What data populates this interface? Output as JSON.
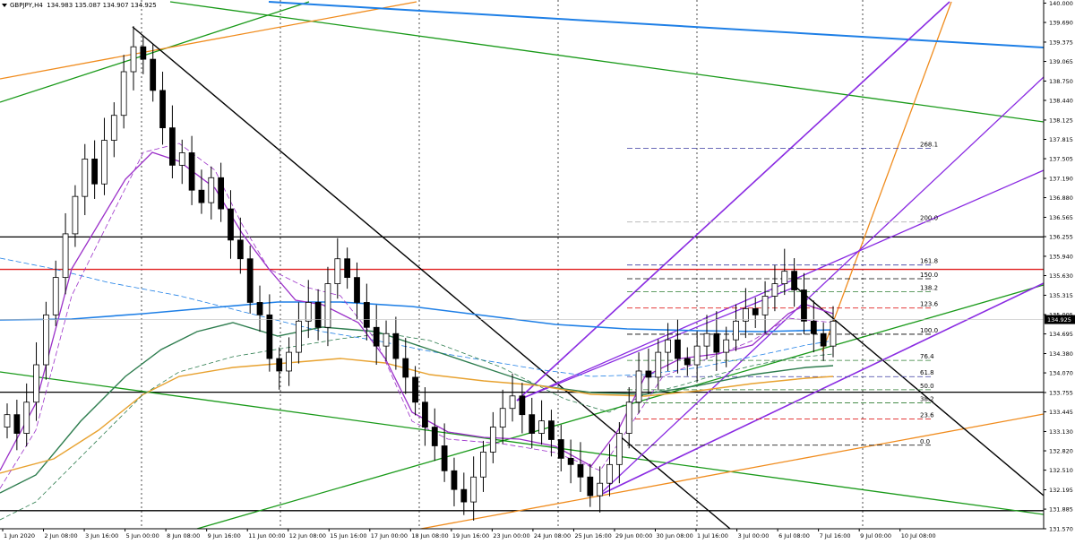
{
  "header": {
    "symbol": "GBPJPY,H4",
    "ohlc": "134.983 135.087 134.907 134.925"
  },
  "colors": {
    "background": "#ffffff",
    "candle": "#000000",
    "ma_blue": "#1e7fe6",
    "ma_green": "#2e7d4f",
    "ma_orange": "#e8a230",
    "ma_purple": "#9b30c9",
    "fib_level": "#000000",
    "support_red": "#e02020",
    "trend_green": "#1a9a1a",
    "trend_orange": "#f08c1e",
    "trend_purple": "#8a2be2",
    "trend_black": "#000000"
  },
  "chart_data": {
    "type": "candlestick",
    "title": "",
    "ylim": [
      131.57,
      140.05
    ],
    "y_ticks": [
      "140.000",
      "139.690",
      "139.375",
      "139.065",
      "138.750",
      "138.440",
      "138.125",
      "137.815",
      "137.505",
      "137.190",
      "136.880",
      "136.565",
      "136.255",
      "135.940",
      "135.630",
      "135.315",
      "135.005",
      "134.695",
      "134.380",
      "134.070",
      "133.755",
      "133.445",
      "133.130",
      "132.820",
      "132.510",
      "132.195",
      "131.885",
      "131.570"
    ],
    "x_ticks": [
      "1 Jun 2020",
      "2 Jun 08:00",
      "3 Jun 16:00",
      "5 Jun 00:00",
      "8 Jun 08:00",
      "9 Jun 16:00",
      "11 Jun 00:00",
      "12 Jun 08:00",
      "15 Jun 16:00",
      "17 Jun 00:00",
      "18 Jun 08:00",
      "19 Jun 16:00",
      "23 Jun 00:00",
      "24 Jun 08:00",
      "25 Jun 16:00",
      "29 Jun 00:00",
      "30 Jun 08:00",
      "1 Jul 16:00",
      "3 Jul 00:00",
      "6 Jul 08:00",
      "7 Jul 16:00",
      "9 Jul 00:00",
      "10 Jul 08:00"
    ],
    "current_price": "134.925",
    "horizontal_levels": [
      {
        "label": "",
        "value": 136.25,
        "color": "#000000"
      },
      {
        "label": "",
        "value": 135.73,
        "color": "#e02020"
      },
      {
        "label": "",
        "value": 133.76,
        "color": "#000000"
      },
      {
        "label": "",
        "value": 131.86,
        "color": "#000000"
      }
    ],
    "fib_levels": [
      {
        "label": "268.1",
        "value": 137.67,
        "color": "#3a3aa0"
      },
      {
        "label": "200.0",
        "value": 136.49,
        "color": "#b0b0b0"
      },
      {
        "label": "161.8",
        "value": 135.8,
        "color": "#3a3aa0"
      },
      {
        "label": "150.0",
        "value": 135.58,
        "color": "#000000"
      },
      {
        "label": "138.2",
        "value": 135.37,
        "color": "#2e7d32"
      },
      {
        "label": "123.6",
        "value": 135.11,
        "color": "#e02020"
      },
      {
        "label": "100.0",
        "value": 134.69,
        "color": "#000000"
      },
      {
        "label": "76.4",
        "value": 134.27,
        "color": "#2e7d32"
      },
      {
        "label": "61.8",
        "value": 134.01,
        "color": "#3a3aa0"
      },
      {
        "label": "50.0",
        "value": 133.8,
        "color": "#2e7d32"
      },
      {
        "label": "38.2",
        "value": 133.59,
        "color": "#2e7d32"
      },
      {
        "label": "23.6",
        "value": 133.33,
        "color": "#e02020"
      },
      {
        "label": "0.0",
        "value": 132.91,
        "color": "#000000"
      }
    ]
  }
}
